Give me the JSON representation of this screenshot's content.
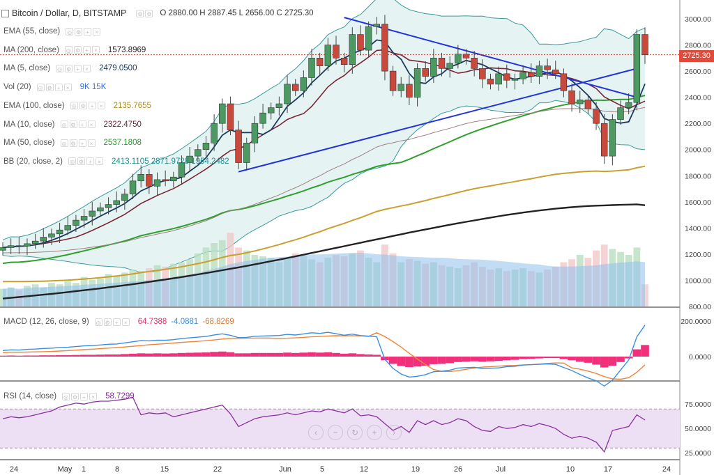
{
  "header": {
    "symbol": "Bitcoin / Dollar, D, BITSTAMP",
    "ohlc": "O 2880.00 H 2887.45 L 2656.00 C 2725.30"
  },
  "legends": [
    {
      "name": "EMA (55, close)",
      "value": "",
      "color": "#8a8a8a"
    },
    {
      "name": "MA (200, close)",
      "value": "1573.8969",
      "color": "#222222"
    },
    {
      "name": "MA (5, close)",
      "value": "2479.0500",
      "color": "#1d3b5c"
    },
    {
      "name": "Vol (20)",
      "value": "9K 15K",
      "color": "#3a6fd8"
    },
    {
      "name": "EMA (100, close)",
      "value": "2135.7655",
      "color": "#b08a1a"
    },
    {
      "name": "MA (10, close)",
      "value": "2322.4750",
      "color": "#6b1f2e"
    },
    {
      "name": "MA (50, close)",
      "value": "2537.1808",
      "color": "#2c9a2c"
    },
    {
      "name": "BB (20, close, 2)",
      "value": "2413.1105 2871.9728 1954.2482",
      "color": "#1a8f8f"
    }
  ],
  "macd_legend": {
    "name": "MACD (12, 26, close, 9)",
    "v1": "64.7388",
    "v2": "-4.0881",
    "v3": "-68.8269",
    "c1": "#e03070",
    "c2": "#3a8ee0",
    "c3": "#e07a30"
  },
  "rsi_legend": {
    "name": "RSI (14, close)",
    "value": "58.7299",
    "color": "#8a2fa0"
  },
  "price_tag": "2725.30",
  "nav_buttons": [
    "‹",
    "−",
    "↻",
    "+",
    "›"
  ],
  "chart_data": {
    "type": "candlestick",
    "price_axis": {
      "ticks": [
        "3000.00",
        "2800.00",
        "2600.00",
        "2400.00",
        "2200.00",
        "2000.00",
        "1800.00",
        "1600.00",
        "1400.00",
        "1200.00",
        "1000.00",
        "800.00"
      ],
      "range": [
        800,
        3080
      ]
    },
    "macd_axis": {
      "ticks": [
        "200.0000",
        "0.0000"
      ]
    },
    "rsi_axis": {
      "ticks": [
        "75.0000",
        "50.0000",
        "25.0000"
      ],
      "bands": [
        30,
        70
      ]
    },
    "x_ticks": [
      "24",
      "May",
      "1",
      "8",
      "15",
      "22",
      "Jun",
      "5",
      "12",
      "19",
      "26",
      "Jul",
      "10",
      "17",
      "24"
    ],
    "closes": [
      1250,
      1265,
      1262,
      1280,
      1300,
      1330,
      1355,
      1385,
      1420,
      1460,
      1490,
      1530,
      1555,
      1580,
      1610,
      1660,
      1760,
      1810,
      1720,
      1770,
      1760,
      1790,
      1900,
      1950,
      2000,
      2050,
      2200,
      2350,
      2150,
      1900,
      2050,
      2200,
      2280,
      2320,
      2350,
      2500,
      2450,
      2550,
      2700,
      2640,
      2800,
      2700,
      2650,
      2880,
      2760,
      2940,
      2960,
      2600,
      2450,
      2500,
      2400,
      2620,
      2560,
      2700,
      2620,
      2660,
      2730,
      2700,
      2620,
      2540,
      2500,
      2580,
      2530,
      2540,
      2590,
      2560,
      2640,
      2610,
      2580,
      2450,
      2350,
      2380,
      2310,
      2200,
      1950,
      2230,
      2320,
      2360,
      2880,
      2725
    ],
    "ma200": [
      860,
      866,
      872,
      878,
      884,
      890,
      896,
      903,
      910,
      917,
      924,
      931,
      938,
      946,
      954,
      962,
      970,
      979,
      988,
      997,
      1006,
      1015,
      1025,
      1035,
      1045,
      1055,
      1066,
      1077,
      1088,
      1099,
      1110,
      1122,
      1134,
      1146,
      1158,
      1170,
      1183,
      1196,
      1209,
      1222,
      1235,
      1248,
      1261,
      1274,
      1287,
      1300,
      1313,
      1326,
      1339,
      1352,
      1365,
      1377,
      1389,
      1401,
      1413,
      1425,
      1436,
      1447,
      1458,
      1469,
      1480,
      1490,
      1500,
      1509,
      1518,
      1526,
      1534,
      1541,
      1548,
      1554,
      1559,
      1564,
      1568,
      1571,
      1573,
      1575,
      1577,
      1579,
      1581,
      1574
    ],
    "volume": [
      120,
      130,
      110,
      140,
      150,
      130,
      160,
      150,
      170,
      160,
      200,
      180,
      190,
      220,
      210,
      230,
      250,
      240,
      260,
      280,
      270,
      290,
      300,
      320,
      360,
      400,
      430,
      450,
      500,
      400,
      380,
      350,
      340,
      330,
      300,
      320,
      360,
      340,
      320,
      300,
      330,
      350,
      340,
      360,
      380,
      330,
      300,
      420,
      360,
      300,
      320,
      310,
      290,
      300,
      280,
      270,
      260,
      280,
      300,
      270,
      250,
      260,
      240,
      250,
      260,
      240,
      230,
      250,
      270,
      300,
      320,
      350,
      330,
      380,
      420,
      390,
      370,
      350,
      400,
      150
    ],
    "macd_hist": [
      5,
      6,
      5,
      6,
      6,
      7,
      7,
      8,
      8,
      9,
      10,
      10,
      11,
      12,
      12,
      14,
      16,
      18,
      17,
      18,
      17,
      18,
      20,
      21,
      22,
      23,
      26,
      28,
      24,
      18,
      18,
      20,
      20,
      20,
      20,
      22,
      20,
      22,
      24,
      22,
      24,
      20,
      16,
      18,
      14,
      12,
      10,
      -20,
      -40,
      -52,
      -58,
      -55,
      -50,
      -42,
      -40,
      -36,
      -30,
      -28,
      -26,
      -28,
      -26,
      -24,
      -20,
      -18,
      -14,
      -12,
      -10,
      -8,
      -8,
      -14,
      -20,
      -28,
      -34,
      -44,
      -60,
      -50,
      -30,
      -10,
      40,
      64
    ],
    "rsi": [
      60,
      62,
      61,
      62,
      64,
      66,
      68,
      72,
      74,
      76,
      75,
      77,
      78,
      78,
      79,
      80,
      82,
      64,
      66,
      65,
      66,
      62,
      64,
      66,
      68,
      70,
      72,
      74,
      65,
      52,
      56,
      60,
      62,
      63,
      64,
      66,
      64,
      66,
      68,
      67,
      70,
      68,
      66,
      70,
      63,
      64,
      62,
      55,
      48,
      52,
      46,
      58,
      54,
      58,
      54,
      56,
      60,
      58,
      52,
      48,
      47,
      52,
      50,
      51,
      54,
      52,
      55,
      53,
      50,
      44,
      40,
      42,
      40,
      36,
      26,
      48,
      50,
      52,
      64,
      58.7
    ]
  }
}
